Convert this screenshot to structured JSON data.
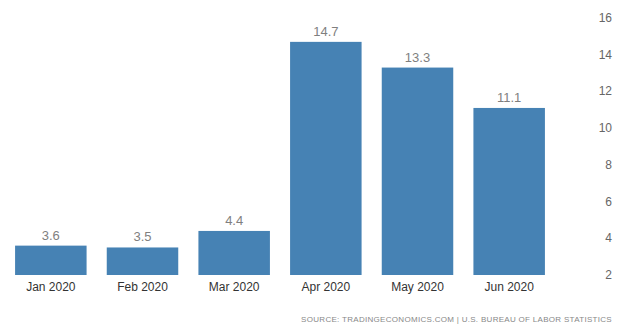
{
  "chart_data": {
    "type": "bar",
    "categories": [
      "Jan 2020",
      "Feb 2020",
      "Mar 2020",
      "Apr 2020",
      "May 2020",
      "Jun 2020"
    ],
    "values": [
      3.6,
      3.5,
      4.4,
      14.7,
      13.3,
      11.1
    ],
    "color": "#4682b4",
    "ylim": [
      2,
      16
    ],
    "yticks": [
      2,
      4,
      6,
      8,
      10,
      12,
      14,
      16
    ],
    "grid": false,
    "data_labels": true,
    "annotations": [
      "SOURCE: TRADINGECONOMICS.COM | U.S. BUREAU OF LABOR STATISTICS"
    ]
  }
}
